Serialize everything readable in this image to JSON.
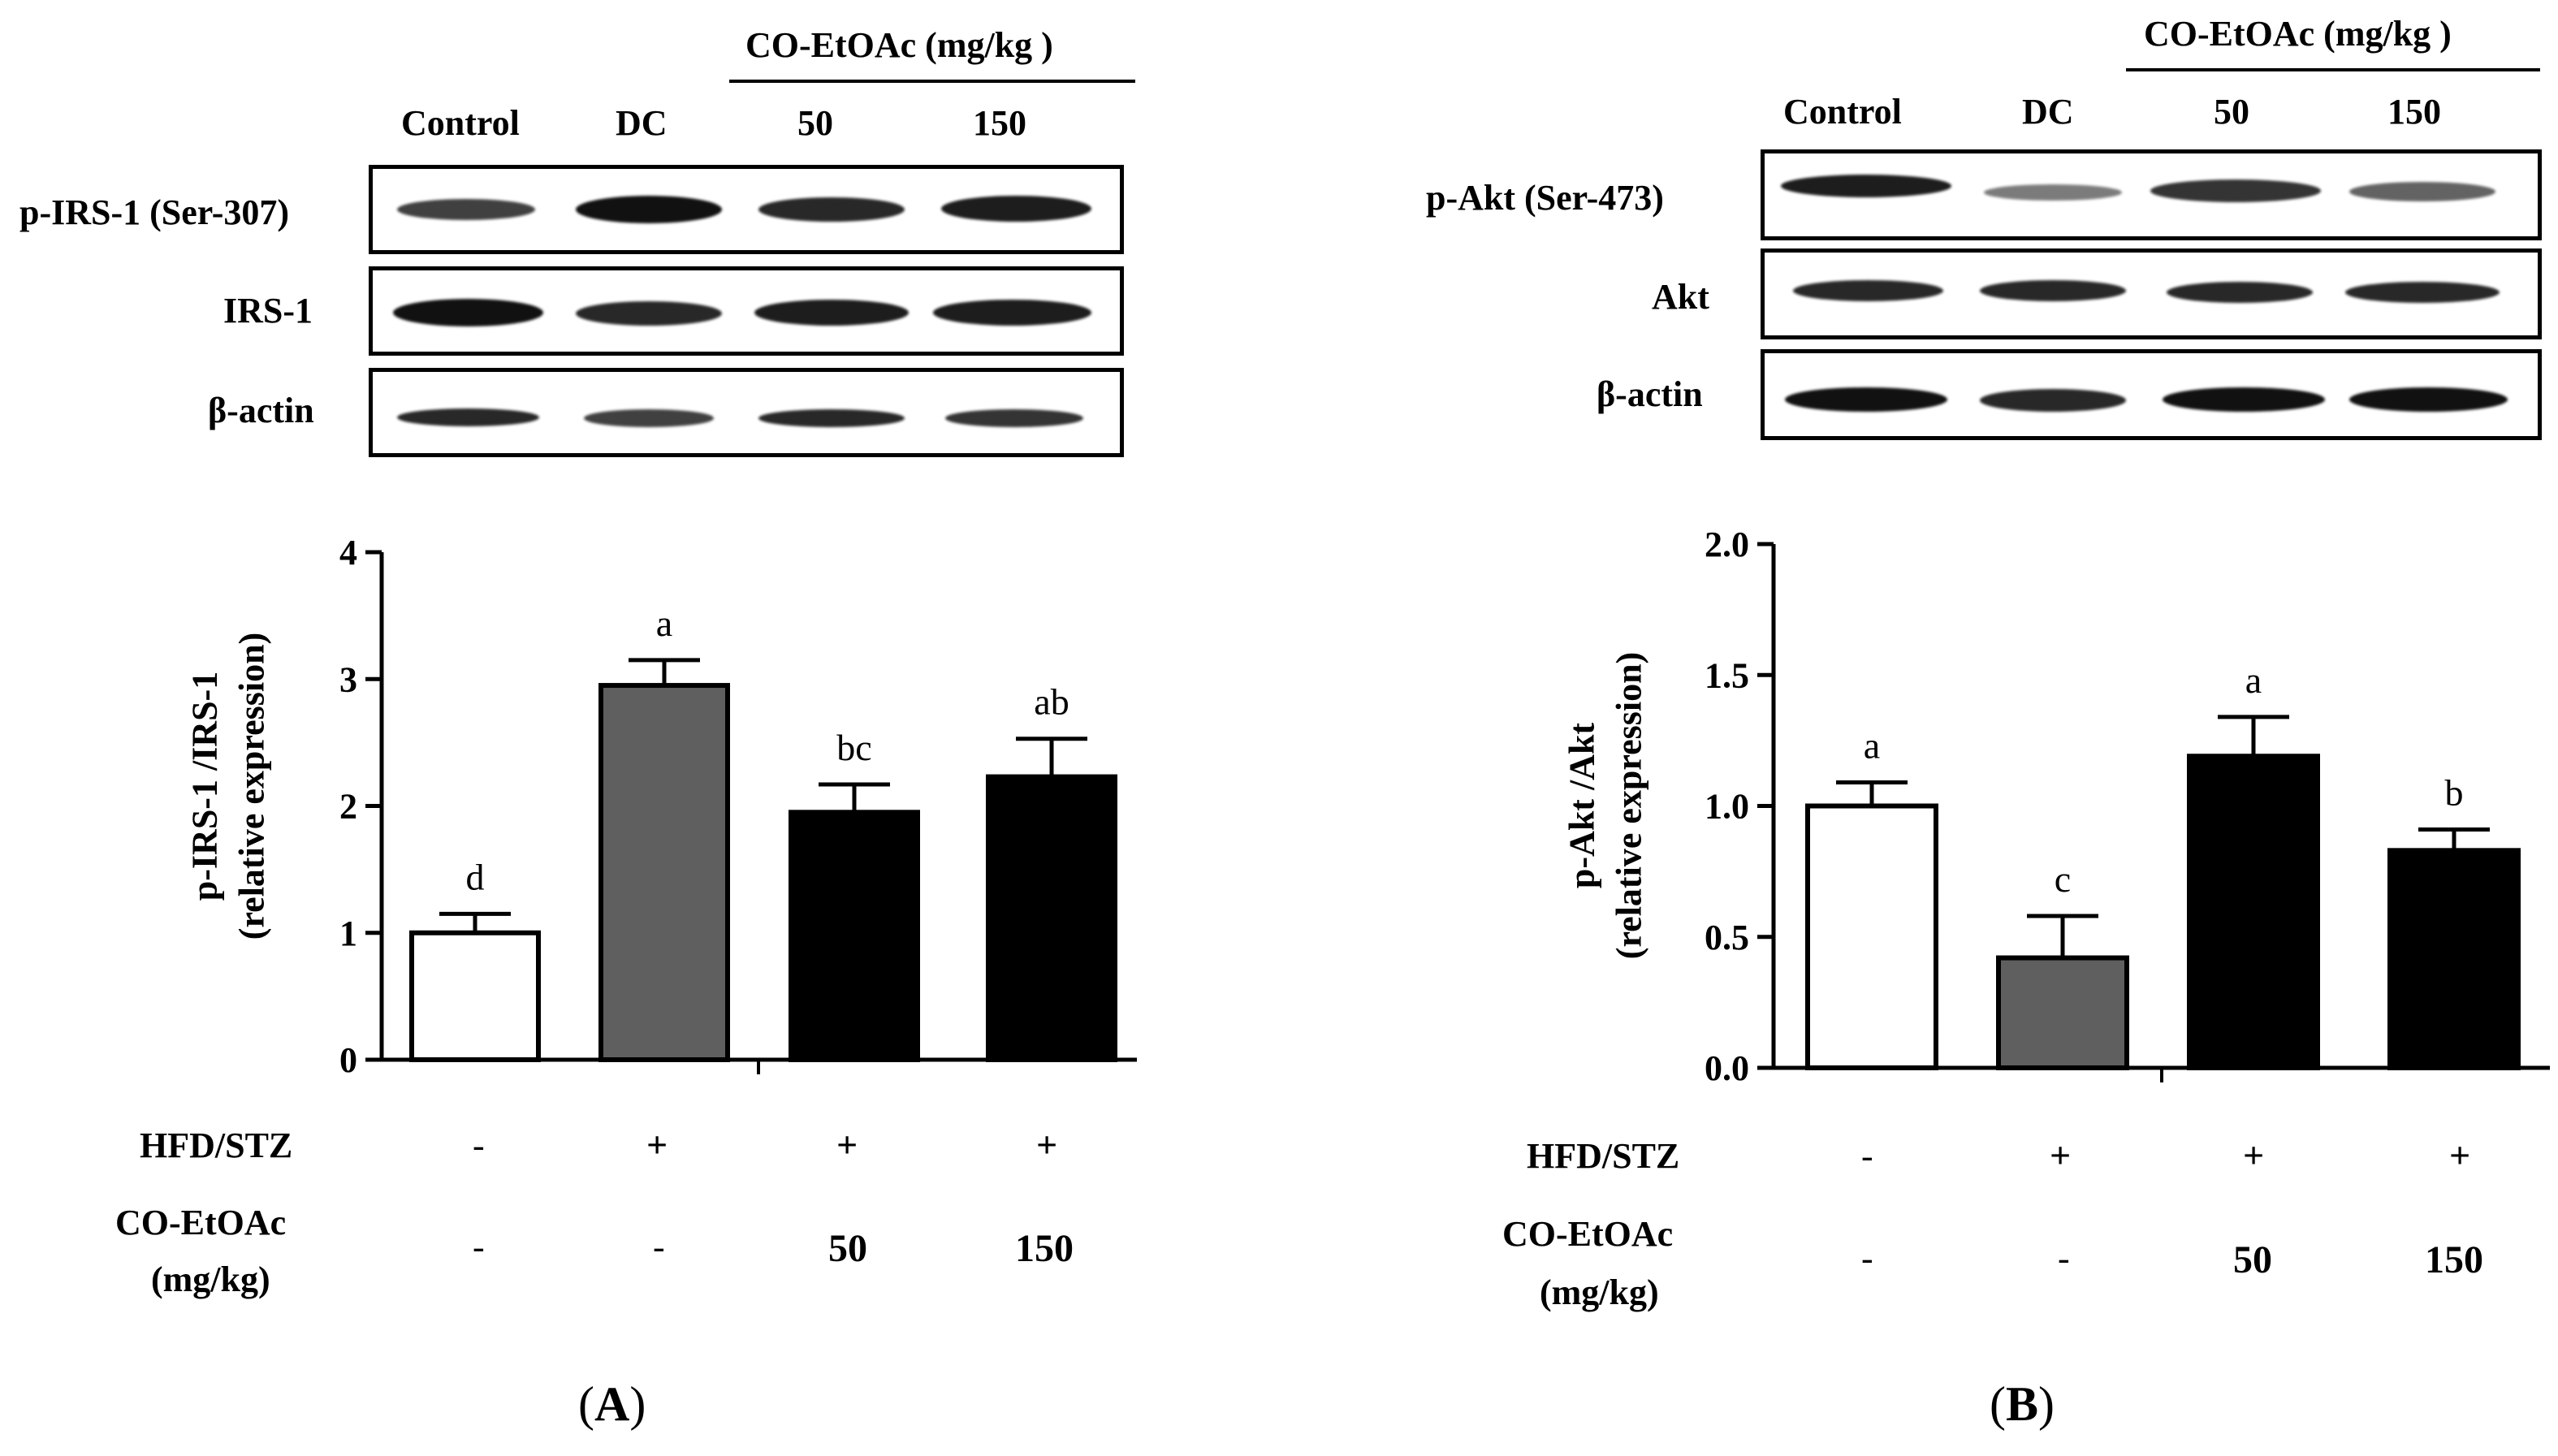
{
  "figure": {
    "panels": [
      {
        "label": "(A)",
        "label_letter": "A",
        "treatment_header": "CO-EtOAc (mg/kg )",
        "lanes": [
          "Control",
          "DC",
          "50",
          "150"
        ],
        "blot_rows": [
          {
            "name": "p-IRS-1 (Ser-307)",
            "intensity": [
              0.8,
              1.0,
              0.9,
              0.95
            ]
          },
          {
            "name": "IRS-1",
            "intensity": [
              1.0,
              0.9,
              0.95,
              0.95
            ]
          },
          {
            "name": "β-actin",
            "intensity": [
              0.9,
              0.8,
              0.9,
              0.85
            ]
          }
        ],
        "hfd_label": "HFD/STZ",
        "hfd_values": [
          "-",
          "+",
          "+",
          "+"
        ],
        "dose_label_line1": "CO-EtOAc",
        "dose_label_line2": "(mg/kg)",
        "dose_values": [
          "-",
          "-",
          "50",
          "150"
        ]
      },
      {
        "label": "(B)",
        "label_letter": "B",
        "treatment_header": "CO-EtOAc (mg/kg )",
        "lanes": [
          "Control",
          "DC",
          "50",
          "150"
        ],
        "blot_rows": [
          {
            "name": "p-Akt (Ser-473)",
            "intensity": [
              0.95,
              0.55,
              0.85,
              0.65
            ]
          },
          {
            "name": "Akt",
            "intensity": [
              0.9,
              0.9,
              0.9,
              0.9
            ]
          },
          {
            "name": "β-actin",
            "intensity": [
              1.0,
              0.9,
              1.0,
              1.0
            ]
          }
        ],
        "hfd_label": "HFD/STZ",
        "hfd_values": [
          "-",
          "+",
          "+",
          "+"
        ],
        "dose_label_line1": "CO-EtOAc",
        "dose_label_line2": "(mg/kg)",
        "dose_values": [
          "-",
          "-",
          "50",
          "150"
        ]
      }
    ]
  },
  "chart_data": [
    {
      "type": "bar",
      "panel": "A",
      "ylabel_line1": "p-IRS-1 /IRS-1",
      "ylabel_line2": "(relative expression)",
      "ylim": [
        0,
        4
      ],
      "yticks": [
        "0",
        "1",
        "2",
        "3",
        "4"
      ],
      "ytick_values": [
        0,
        1,
        2,
        3,
        4
      ],
      "categories": [
        "Control",
        "DC",
        "50",
        "150"
      ],
      "values": [
        1.0,
        2.95,
        1.95,
        2.23
      ],
      "errors": [
        0.15,
        0.2,
        0.22,
        0.3
      ],
      "significance": [
        "d",
        "a",
        "bc",
        "ab"
      ],
      "bar_colors": [
        "#ffffff",
        "#5f5f5f",
        "#000000",
        "#000000"
      ]
    },
    {
      "type": "bar",
      "panel": "B",
      "ylabel_line1": "p-Akt /Akt",
      "ylabel_line2": "(relative expression)",
      "ylim": [
        0,
        2
      ],
      "yticks": [
        "0.0",
        "0.5",
        "1.0",
        "1.5",
        "2.0"
      ],
      "ytick_values": [
        0,
        0.5,
        1,
        1.5,
        2
      ],
      "categories": [
        "Control",
        "DC",
        "50",
        "150"
      ],
      "values": [
        1.0,
        0.42,
        1.19,
        0.83
      ],
      "errors": [
        0.09,
        0.16,
        0.15,
        0.08
      ],
      "significance": [
        "a",
        "c",
        "a",
        "b"
      ],
      "bar_colors": [
        "#ffffff",
        "#5f5f5f",
        "#000000",
        "#000000"
      ]
    }
  ]
}
